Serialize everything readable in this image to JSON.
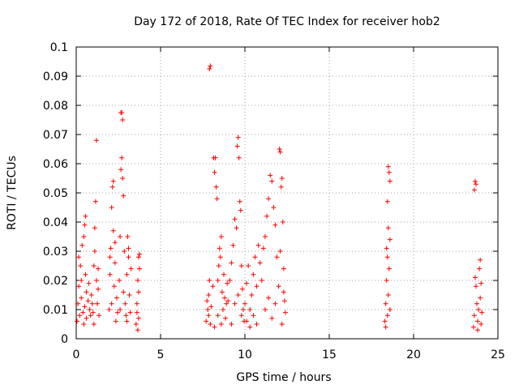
{
  "chart_data": {
    "type": "scatter",
    "title": "Day 172 of 2018, Rate Of TEC Index for receiver hob2",
    "xlabel": "GPS time / hours",
    "ylabel": "ROTI / TECUs",
    "xlim": [
      0,
      25
    ],
    "ylim": [
      0,
      0.1
    ],
    "x_ticks": [
      0,
      5,
      10,
      15,
      20,
      25
    ],
    "x_tick_labels": [
      "0",
      "5",
      "10",
      "15",
      "20",
      "25"
    ],
    "y_ticks": [
      0,
      0.01,
      0.02,
      0.03,
      0.04,
      0.05,
      0.06,
      0.07,
      0.08,
      0.09,
      0.1
    ],
    "y_tick_labels": [
      "0",
      "0.01",
      "0.02",
      "0.03",
      "0.04",
      "0.05",
      "0.06",
      "0.07",
      "0.08",
      "0.09",
      "0.1"
    ],
    "grid": true,
    "marker": "+",
    "point_color": "#ff0000",
    "series": [
      {
        "points": [
          [
            0.05,
            0.006
          ],
          [
            0.1,
            0.012
          ],
          [
            0.15,
            0.018
          ],
          [
            0.2,
            0.008
          ],
          [
            0.25,
            0.025
          ],
          [
            0.3,
            0.014
          ],
          [
            0.35,
            0.032
          ],
          [
            0.4,
            0.009
          ],
          [
            0.45,
            0.035
          ],
          [
            0.5,
            0.011
          ],
          [
            0.55,
            0.042
          ],
          [
            0.6,
            0.016
          ],
          [
            0.15,
            0.028
          ],
          [
            0.3,
            0.02
          ],
          [
            0.45,
            0.005
          ],
          [
            0.5,
            0.039
          ],
          [
            0.55,
            0.022
          ],
          [
            0.6,
            0.007
          ],
          [
            0.7,
            0.013
          ],
          [
            0.75,
            0.019
          ],
          [
            0.8,
            0.01
          ],
          [
            0.85,
            0.008
          ],
          [
            0.9,
            0.015
          ],
          [
            0.95,
            0.012
          ],
          [
            1.0,
            0.009
          ],
          [
            1.05,
            0.025
          ],
          [
            1.1,
            0.038
          ],
          [
            1.15,
            0.047
          ],
          [
            1.2,
            0.02
          ],
          [
            1.25,
            0.012
          ],
          [
            1.3,
            0.017
          ],
          [
            1.35,
            0.008
          ],
          [
            1.1,
            0.03
          ],
          [
            1.2,
            0.068
          ],
          [
            1.05,
            0.005
          ],
          [
            1.3,
            0.024
          ],
          [
            1.95,
            0.01
          ],
          [
            2.0,
            0.022
          ],
          [
            2.05,
            0.031
          ],
          [
            2.1,
            0.045
          ],
          [
            2.15,
            0.052
          ],
          [
            2.2,
            0.037
          ],
          [
            2.25,
            0.018
          ],
          [
            2.3,
            0.026
          ],
          [
            2.35,
            0.006
          ],
          [
            2.4,
            0.014
          ],
          [
            2.45,
            0.009
          ],
          [
            2.0,
            0.028
          ],
          [
            2.1,
            0.012
          ],
          [
            2.2,
            0.054
          ],
          [
            2.3,
            0.033
          ],
          [
            2.55,
            0.02
          ],
          [
            2.6,
            0.035
          ],
          [
            2.65,
            0.058
          ],
          [
            2.7,
            0.062
          ],
          [
            2.65,
            0.0775
          ],
          [
            2.7,
            0.0775
          ],
          [
            2.75,
            0.075
          ],
          [
            2.8,
            0.049
          ],
          [
            2.75,
            0.055
          ],
          [
            2.85,
            0.03
          ],
          [
            2.9,
            0.012
          ],
          [
            2.95,
            0.008
          ],
          [
            3.0,
            0.022
          ],
          [
            3.05,
            0.035
          ],
          [
            3.1,
            0.028
          ],
          [
            3.15,
            0.015
          ],
          [
            3.2,
            0.009
          ],
          [
            3.25,
            0.024
          ],
          [
            2.6,
            0.01
          ],
          [
            2.8,
            0.016
          ],
          [
            3.0,
            0.006
          ],
          [
            3.1,
            0.031
          ],
          [
            3.55,
            0.005
          ],
          [
            3.6,
            0.012
          ],
          [
            3.65,
            0.02
          ],
          [
            3.7,
            0.028
          ],
          [
            3.75,
            0.029
          ],
          [
            3.6,
            0.009
          ],
          [
            3.7,
            0.016
          ],
          [
            3.65,
            0.003
          ],
          [
            3.75,
            0.024
          ],
          [
            3.7,
            0.007
          ],
          [
            7.7,
            0.006
          ],
          [
            7.75,
            0.013
          ],
          [
            7.8,
            0.01
          ],
          [
            7.85,
            0.008
          ],
          [
            7.9,
            0.0925
          ],
          [
            7.95,
            0.0935
          ],
          [
            7.85,
            0.015
          ],
          [
            7.9,
            0.02
          ],
          [
            7.95,
            0.005
          ],
          [
            8.0,
            0.011
          ],
          [
            8.1,
            0.018
          ],
          [
            8.15,
            0.062
          ],
          [
            8.2,
            0.057
          ],
          [
            8.25,
            0.062
          ],
          [
            8.3,
            0.052
          ],
          [
            8.35,
            0.048
          ],
          [
            8.4,
            0.02
          ],
          [
            8.45,
            0.025
          ],
          [
            8.5,
            0.031
          ],
          [
            8.55,
            0.028
          ],
          [
            8.6,
            0.035
          ],
          [
            8.65,
            0.016
          ],
          [
            8.7,
            0.01
          ],
          [
            8.75,
            0.022
          ],
          [
            8.8,
            0.014
          ],
          [
            8.85,
            0.007
          ],
          [
            8.9,
            0.012
          ],
          [
            8.95,
            0.019
          ],
          [
            8.2,
            0.004
          ],
          [
            8.4,
            0.008
          ],
          [
            8.6,
            0.005
          ],
          [
            9.0,
            0.013
          ],
          [
            9.1,
            0.02
          ],
          [
            9.2,
            0.026
          ],
          [
            9.3,
            0.032
          ],
          [
            9.4,
            0.041
          ],
          [
            9.5,
            0.038
          ],
          [
            9.55,
            0.066
          ],
          [
            9.6,
            0.069
          ],
          [
            9.65,
            0.062
          ],
          [
            9.7,
            0.047
          ],
          [
            9.75,
            0.044
          ],
          [
            9.8,
            0.025
          ],
          [
            9.85,
            0.017
          ],
          [
            9.9,
            0.01
          ],
          [
            9.95,
            0.006
          ],
          [
            9.2,
            0.005
          ],
          [
            9.4,
            0.012
          ],
          [
            9.6,
            0.015
          ],
          [
            9.8,
            0.008
          ],
          [
            10.0,
            0.012
          ],
          [
            10.1,
            0.019
          ],
          [
            10.2,
            0.025
          ],
          [
            10.3,
            0.01
          ],
          [
            10.4,
            0.015
          ],
          [
            10.5,
            0.022
          ],
          [
            10.6,
            0.028
          ],
          [
            10.7,
            0.018
          ],
          [
            10.8,
            0.032
          ],
          [
            10.9,
            0.026
          ],
          [
            10.1,
            0.006
          ],
          [
            10.3,
            0.004
          ],
          [
            10.5,
            0.008
          ],
          [
            10.7,
            0.005
          ],
          [
            11.0,
            0.02
          ],
          [
            11.1,
            0.031
          ],
          [
            11.2,
            0.035
          ],
          [
            11.3,
            0.042
          ],
          [
            11.4,
            0.048
          ],
          [
            11.5,
            0.056
          ],
          [
            11.6,
            0.054
          ],
          [
            11.7,
            0.045
          ],
          [
            11.8,
            0.039
          ],
          [
            11.9,
            0.028
          ],
          [
            11.2,
            0.01
          ],
          [
            11.4,
            0.014
          ],
          [
            11.6,
            0.007
          ],
          [
            11.8,
            0.012
          ],
          [
            12.0,
            0.018
          ],
          [
            12.05,
            0.065
          ],
          [
            12.1,
            0.064
          ],
          [
            12.15,
            0.052
          ],
          [
            12.2,
            0.055
          ],
          [
            12.25,
            0.04
          ],
          [
            12.3,
            0.024
          ],
          [
            12.35,
            0.013
          ],
          [
            12.4,
            0.009
          ],
          [
            12.1,
            0.03
          ],
          [
            12.2,
            0.005
          ],
          [
            12.3,
            0.016
          ],
          [
            18.3,
            0.006
          ],
          [
            18.35,
            0.012
          ],
          [
            18.4,
            0.02
          ],
          [
            18.45,
            0.028
          ],
          [
            18.5,
            0.038
          ],
          [
            18.55,
            0.057
          ],
          [
            18.6,
            0.054
          ],
          [
            18.5,
            0.059
          ],
          [
            18.45,
            0.047
          ],
          [
            18.4,
            0.031
          ],
          [
            18.55,
            0.024
          ],
          [
            18.6,
            0.01
          ],
          [
            18.35,
            0.004
          ],
          [
            18.5,
            0.015
          ],
          [
            18.6,
            0.034
          ],
          [
            18.45,
            0.008
          ],
          [
            23.55,
            0.004
          ],
          [
            23.6,
            0.008
          ],
          [
            23.65,
            0.021
          ],
          [
            23.7,
            0.053
          ],
          [
            23.65,
            0.054
          ],
          [
            23.6,
            0.051
          ],
          [
            23.7,
            0.018
          ],
          [
            23.75,
            0.012
          ],
          [
            23.8,
            0.006
          ],
          [
            23.85,
            0.01
          ],
          [
            23.9,
            0.024
          ],
          [
            23.95,
            0.027
          ],
          [
            24.0,
            0.019
          ],
          [
            24.05,
            0.009
          ],
          [
            23.8,
            0.003
          ],
          [
            23.95,
            0.014
          ],
          [
            24.0,
            0.005
          ]
        ]
      }
    ]
  }
}
